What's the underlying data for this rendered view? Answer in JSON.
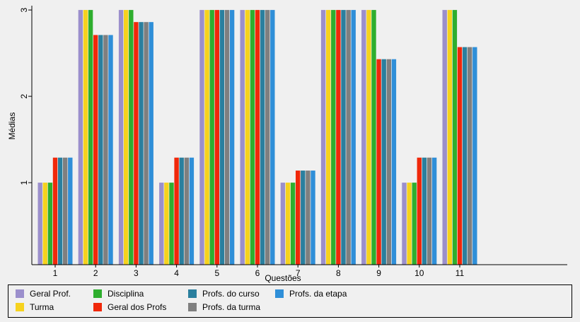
{
  "chart_data": {
    "type": "bar",
    "title": "",
    "xlabel": "Questões",
    "ylabel": "Médias",
    "ylim": [
      0.05,
      3.05
    ],
    "yticks": [
      "1",
      "2",
      "3"
    ],
    "grid": false,
    "legend_position": "bottom",
    "categories": [
      "1",
      "2",
      "3",
      "4",
      "5",
      "6",
      "7",
      "8",
      "9",
      "10",
      "11"
    ],
    "series": [
      {
        "name": "Geral Prof.",
        "color": "#9b8fcc",
        "values": [
          1,
          3,
          3,
          1,
          3,
          3,
          1,
          3,
          3,
          1,
          3
        ]
      },
      {
        "name": "Turma",
        "color": "#f6d21e",
        "values": [
          1,
          3,
          3,
          1,
          3,
          3,
          1,
          3,
          3,
          1,
          3
        ]
      },
      {
        "name": "Disciplina",
        "color": "#2eae2e",
        "values": [
          1,
          3,
          3,
          1,
          3,
          3,
          1,
          3,
          3,
          1,
          3
        ]
      },
      {
        "name": "Geral dos Profs",
        "color": "#f0280a",
        "values": [
          1.29,
          2.71,
          2.86,
          1.29,
          3,
          3,
          1.14,
          3,
          2.43,
          1.29,
          2.57
        ]
      },
      {
        "name": "Profs. do curso",
        "color": "#2a7f9e",
        "values": [
          1.29,
          2.71,
          2.86,
          1.29,
          3,
          3,
          1.14,
          3,
          2.43,
          1.29,
          2.57
        ]
      },
      {
        "name": "Profs. da turma",
        "color": "#7f7f7f",
        "values": [
          1.29,
          2.71,
          2.86,
          1.29,
          3,
          3,
          1.14,
          3,
          2.43,
          1.29,
          2.57
        ]
      },
      {
        "name": "Profs. da etapa",
        "color": "#2f8fd8",
        "values": [
          1.29,
          2.71,
          2.86,
          1.29,
          3,
          3,
          1.14,
          3,
          2.43,
          1.29,
          2.57
        ]
      }
    ]
  }
}
